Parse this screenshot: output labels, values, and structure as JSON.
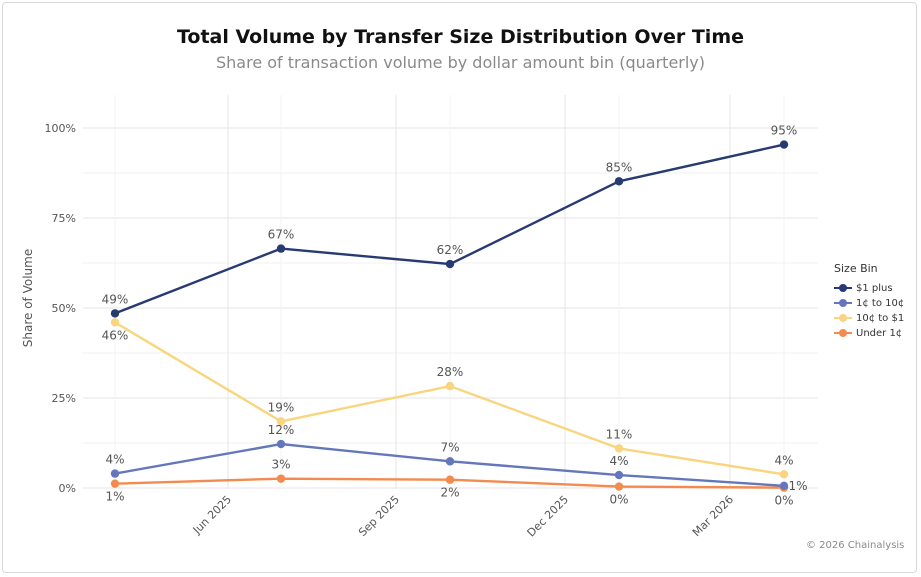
{
  "chart_data": {
    "type": "line",
    "title": "Total Volume by Transfer Size Distribution Over Time",
    "subtitle": "Share of transaction volume by dollar amount bin (quarterly)",
    "xlabel": "",
    "ylabel": "Share of Volume",
    "x_tick_labels": [
      "Jun 2025",
      "Sep 2025",
      "Dec 2025",
      "Mar 2026"
    ],
    "x": [
      "2025-03-31",
      "2025-06-30",
      "2025-09-30",
      "2025-12-31",
      "2026-03-31"
    ],
    "y_tick_labels": [
      "0%",
      "25%",
      "50%",
      "75%",
      "100%"
    ],
    "ylim": [
      0,
      100
    ],
    "grid": true,
    "legend_title": "Size Bin",
    "legend_position": "right",
    "series": [
      {
        "name": "$1 plus",
        "color": "#273a72",
        "values": [
          48.5,
          66.5,
          62.2,
          85.2,
          95.4
        ],
        "labels": [
          "49%",
          "67%",
          "62%",
          "85%",
          "95%"
        ],
        "label_side": [
          "above",
          "above",
          "above",
          "above",
          "above"
        ]
      },
      {
        "name": "1¢ to 10¢",
        "color": "#6477bd",
        "values": [
          4.0,
          12.2,
          7.4,
          3.6,
          0.6
        ],
        "labels": [
          "4%",
          "12%",
          "7%",
          "4%",
          "1%"
        ],
        "label_side": [
          "above",
          "above",
          "above",
          "above",
          "right"
        ]
      },
      {
        "name": "10¢ to $1",
        "color": "#f8d57e",
        "values": [
          46.0,
          18.5,
          28.3,
          11.0,
          3.8
        ],
        "labels": [
          "46%",
          "19%",
          "28%",
          "11%",
          "4%"
        ],
        "label_side": [
          "below",
          "above",
          "above",
          "above",
          "above"
        ]
      },
      {
        "name": "Under 1¢",
        "color": "#f38a4f",
        "values": [
          1.2,
          2.6,
          2.3,
          0.4,
          0.1
        ],
        "labels": [
          "1%",
          "3%",
          "2%",
          "0%",
          "0%"
        ],
        "label_side": [
          "below",
          "above",
          "below",
          "below",
          "below"
        ]
      }
    ]
  },
  "credit": "© 2026 Chainalysis"
}
